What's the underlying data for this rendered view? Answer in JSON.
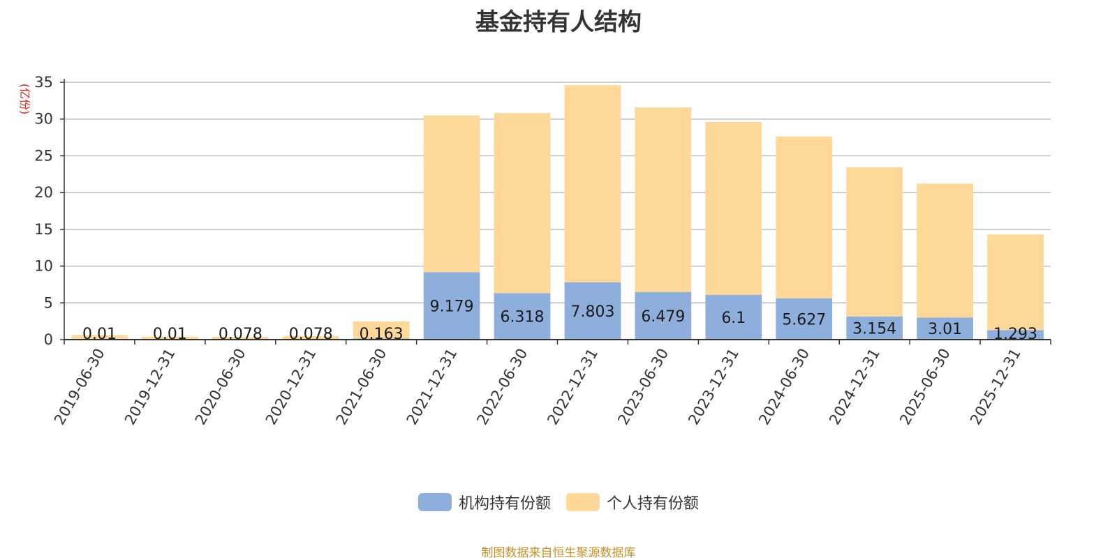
{
  "colors": {
    "institution": "#8eaedb",
    "individual": "#fdd899",
    "unit_label": "#e0201b",
    "grid": "#bdbdbd",
    "axis": "#333333",
    "source": "#c89028"
  },
  "chart_data": {
    "type": "bar",
    "stacked": true,
    "title": "基金持有人结构",
    "ylabel": "(亿份)",
    "ylim": [
      0,
      35
    ],
    "yticks": [
      0,
      5,
      10,
      15,
      20,
      25,
      30,
      35
    ],
    "grid": true,
    "legend_position": "bottom-center",
    "categories": [
      "2019-06-30",
      "2019-12-31",
      "2020-06-30",
      "2020-12-31",
      "2021-06-30",
      "2021-12-31",
      "2022-06-30",
      "2022-12-31",
      "2023-06-30",
      "2023-12-31",
      "2024-06-30",
      "2024-12-31",
      "2025-06-30",
      "2025-12-31"
    ],
    "series": [
      {
        "name": "机构持有份额",
        "values": [
          0.01,
          0.01,
          0.078,
          0.078,
          0.163,
          9.179,
          6.318,
          7.803,
          6.479,
          6.1,
          5.627,
          3.154,
          3.01,
          1.293
        ],
        "labels": [
          "0.01",
          "0.01",
          "0.078",
          "0.078",
          "0.163",
          "9.179",
          "6.318",
          "7.803",
          "6.479",
          "6.1",
          "5.627",
          "3.154",
          "3.01",
          "1.293"
        ]
      },
      {
        "name": "个人持有份额",
        "values": [
          0.6,
          0.4,
          0.3,
          0.4,
          2.3,
          21.3,
          24.5,
          26.8,
          25.1,
          23.5,
          22.0,
          20.3,
          18.2,
          13.0
        ]
      }
    ]
  },
  "source": "制图数据来自恒生聚源数据库"
}
